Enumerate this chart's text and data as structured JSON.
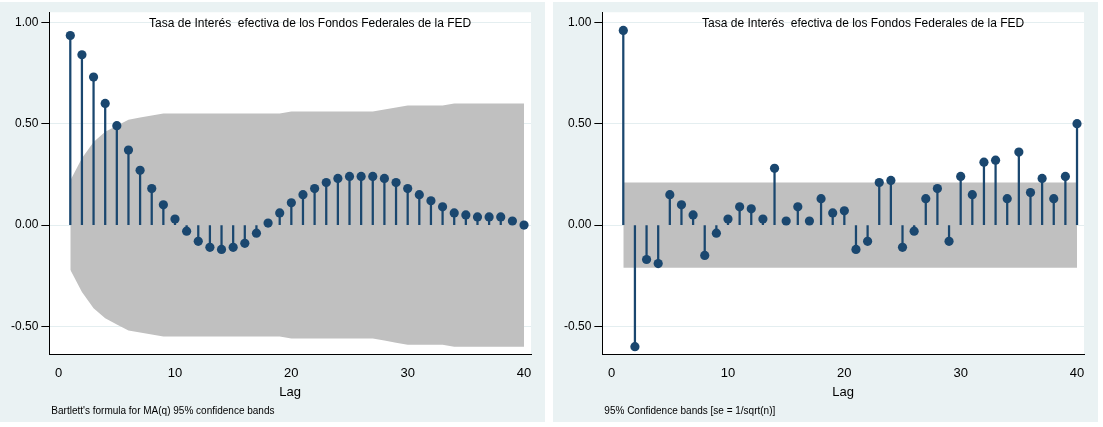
{
  "chart_data": [
    {
      "type": "lollipop",
      "title": "Tasa de Interés  efectiva de los Fondos Federales de la FED",
      "xlabel": "Lag",
      "annotations": [
        "Bartlett's formula for MA(q) 95% confidence bands"
      ],
      "xlim": [
        -0.8,
        40.6
      ],
      "xticks": [
        0,
        10,
        20,
        30,
        40
      ],
      "ylim": [
        -0.64,
        1.05
      ],
      "yticks": [
        {
          "value": -0.5,
          "label": "-0.50"
        },
        {
          "value": 0,
          "label": "0.00"
        },
        {
          "value": 0.5,
          "label": "0.50"
        },
        {
          "value": 1,
          "label": "1.00"
        }
      ],
      "grid": "y",
      "marker": "circle",
      "x": [
        1,
        2,
        3,
        4,
        5,
        6,
        7,
        8,
        9,
        10,
        11,
        12,
        13,
        14,
        15,
        16,
        17,
        18,
        19,
        20,
        21,
        22,
        23,
        24,
        25,
        26,
        27,
        28,
        29,
        30,
        31,
        32,
        33,
        34,
        35,
        36,
        37,
        38,
        39,
        40
      ],
      "series": [
        {
          "color": "#1a476f",
          "values": [
            0.935,
            0.84,
            0.73,
            0.6,
            0.49,
            0.37,
            0.27,
            0.18,
            0.1,
            0.03,
            -0.03,
            -0.08,
            -0.11,
            -0.12,
            -0.11,
            -0.09,
            -0.04,
            0.01,
            0.06,
            0.11,
            0.15,
            0.18,
            0.21,
            0.23,
            0.24,
            0.24,
            0.24,
            0.23,
            0.21,
            0.18,
            0.15,
            0.12,
            0.09,
            0.06,
            0.05,
            0.04,
            0.04,
            0.04,
            0.02,
            0.0
          ],
          "upper": [
            0.22,
            0.33,
            0.41,
            0.46,
            0.49,
            0.52,
            0.53,
            0.54,
            0.55,
            0.55,
            0.55,
            0.55,
            0.55,
            0.55,
            0.55,
            0.55,
            0.55,
            0.55,
            0.55,
            0.56,
            0.56,
            0.56,
            0.56,
            0.56,
            0.56,
            0.56,
            0.56,
            0.57,
            0.58,
            0.59,
            0.59,
            0.59,
            0.59,
            0.6,
            0.6,
            0.6,
            0.6,
            0.6,
            0.6,
            0.6
          ],
          "lower": [
            -0.22,
            -0.33,
            -0.41,
            -0.46,
            -0.49,
            -0.52,
            -0.53,
            -0.54,
            -0.55,
            -0.55,
            -0.55,
            -0.55,
            -0.55,
            -0.55,
            -0.55,
            -0.55,
            -0.55,
            -0.55,
            -0.55,
            -0.56,
            -0.56,
            -0.56,
            -0.56,
            -0.56,
            -0.56,
            -0.56,
            -0.56,
            -0.57,
            -0.58,
            -0.59,
            -0.59,
            -0.59,
            -0.59,
            -0.6,
            -0.6,
            -0.6,
            -0.6,
            -0.6,
            -0.6,
            -0.6
          ]
        }
      ]
    },
    {
      "type": "lollipop",
      "title": "Tasa de Interés  efectiva de los Fondos Federales de la FED",
      "xlabel": "Lag",
      "annotations": [
        "95% Confidence bands [se = 1/sqrt(n)]"
      ],
      "xlim": [
        -0.8,
        40.6
      ],
      "xticks": [
        0,
        10,
        20,
        30,
        40
      ],
      "ylim": [
        -0.64,
        1.05
      ],
      "yticks": [
        {
          "value": -0.5,
          "label": "-0.50"
        },
        {
          "value": 0,
          "label": "0.00"
        },
        {
          "value": 0.5,
          "label": "0.50"
        },
        {
          "value": 1,
          "label": "1.00"
        }
      ],
      "grid": "y",
      "marker": "circle",
      "x": [
        1,
        2,
        3,
        4,
        5,
        6,
        7,
        8,
        9,
        10,
        11,
        12,
        13,
        14,
        15,
        16,
        17,
        18,
        19,
        20,
        21,
        22,
        23,
        24,
        25,
        26,
        27,
        28,
        29,
        30,
        31,
        32,
        33,
        34,
        35,
        36,
        37,
        38,
        39,
        40
      ],
      "series": [
        {
          "color": "#1a476f",
          "values": [
            0.96,
            -0.6,
            -0.17,
            -0.19,
            0.15,
            0.1,
            0.05,
            -0.15,
            -0.04,
            0.03,
            0.09,
            0.08,
            0.03,
            0.28,
            0.02,
            0.09,
            0.02,
            0.13,
            0.06,
            0.07,
            -0.12,
            -0.08,
            0.21,
            0.22,
            -0.11,
            -0.03,
            0.13,
            0.18,
            -0.08,
            0.24,
            0.15,
            0.31,
            0.32,
            0.13,
            0.36,
            0.16,
            0.23,
            0.13,
            0.24,
            0.5
          ],
          "upper": [
            0.21,
            0.21,
            0.21,
            0.21,
            0.21,
            0.21,
            0.21,
            0.21,
            0.21,
            0.21,
            0.21,
            0.21,
            0.21,
            0.21,
            0.21,
            0.21,
            0.21,
            0.21,
            0.21,
            0.21,
            0.21,
            0.21,
            0.21,
            0.21,
            0.21,
            0.21,
            0.21,
            0.21,
            0.21,
            0.21,
            0.21,
            0.21,
            0.21,
            0.21,
            0.21,
            0.21,
            0.21,
            0.21,
            0.21,
            0.21
          ],
          "lower": [
            -0.21,
            -0.21,
            -0.21,
            -0.21,
            -0.21,
            -0.21,
            -0.21,
            -0.21,
            -0.21,
            -0.21,
            -0.21,
            -0.21,
            -0.21,
            -0.21,
            -0.21,
            -0.21,
            -0.21,
            -0.21,
            -0.21,
            -0.21,
            -0.21,
            -0.21,
            -0.21,
            -0.21,
            -0.21,
            -0.21,
            -0.21,
            -0.21,
            -0.21,
            -0.21,
            -0.21,
            -0.21,
            -0.21,
            -0.21,
            -0.21,
            -0.21,
            -0.21,
            -0.21,
            -0.21,
            -0.21
          ]
        }
      ]
    }
  ]
}
